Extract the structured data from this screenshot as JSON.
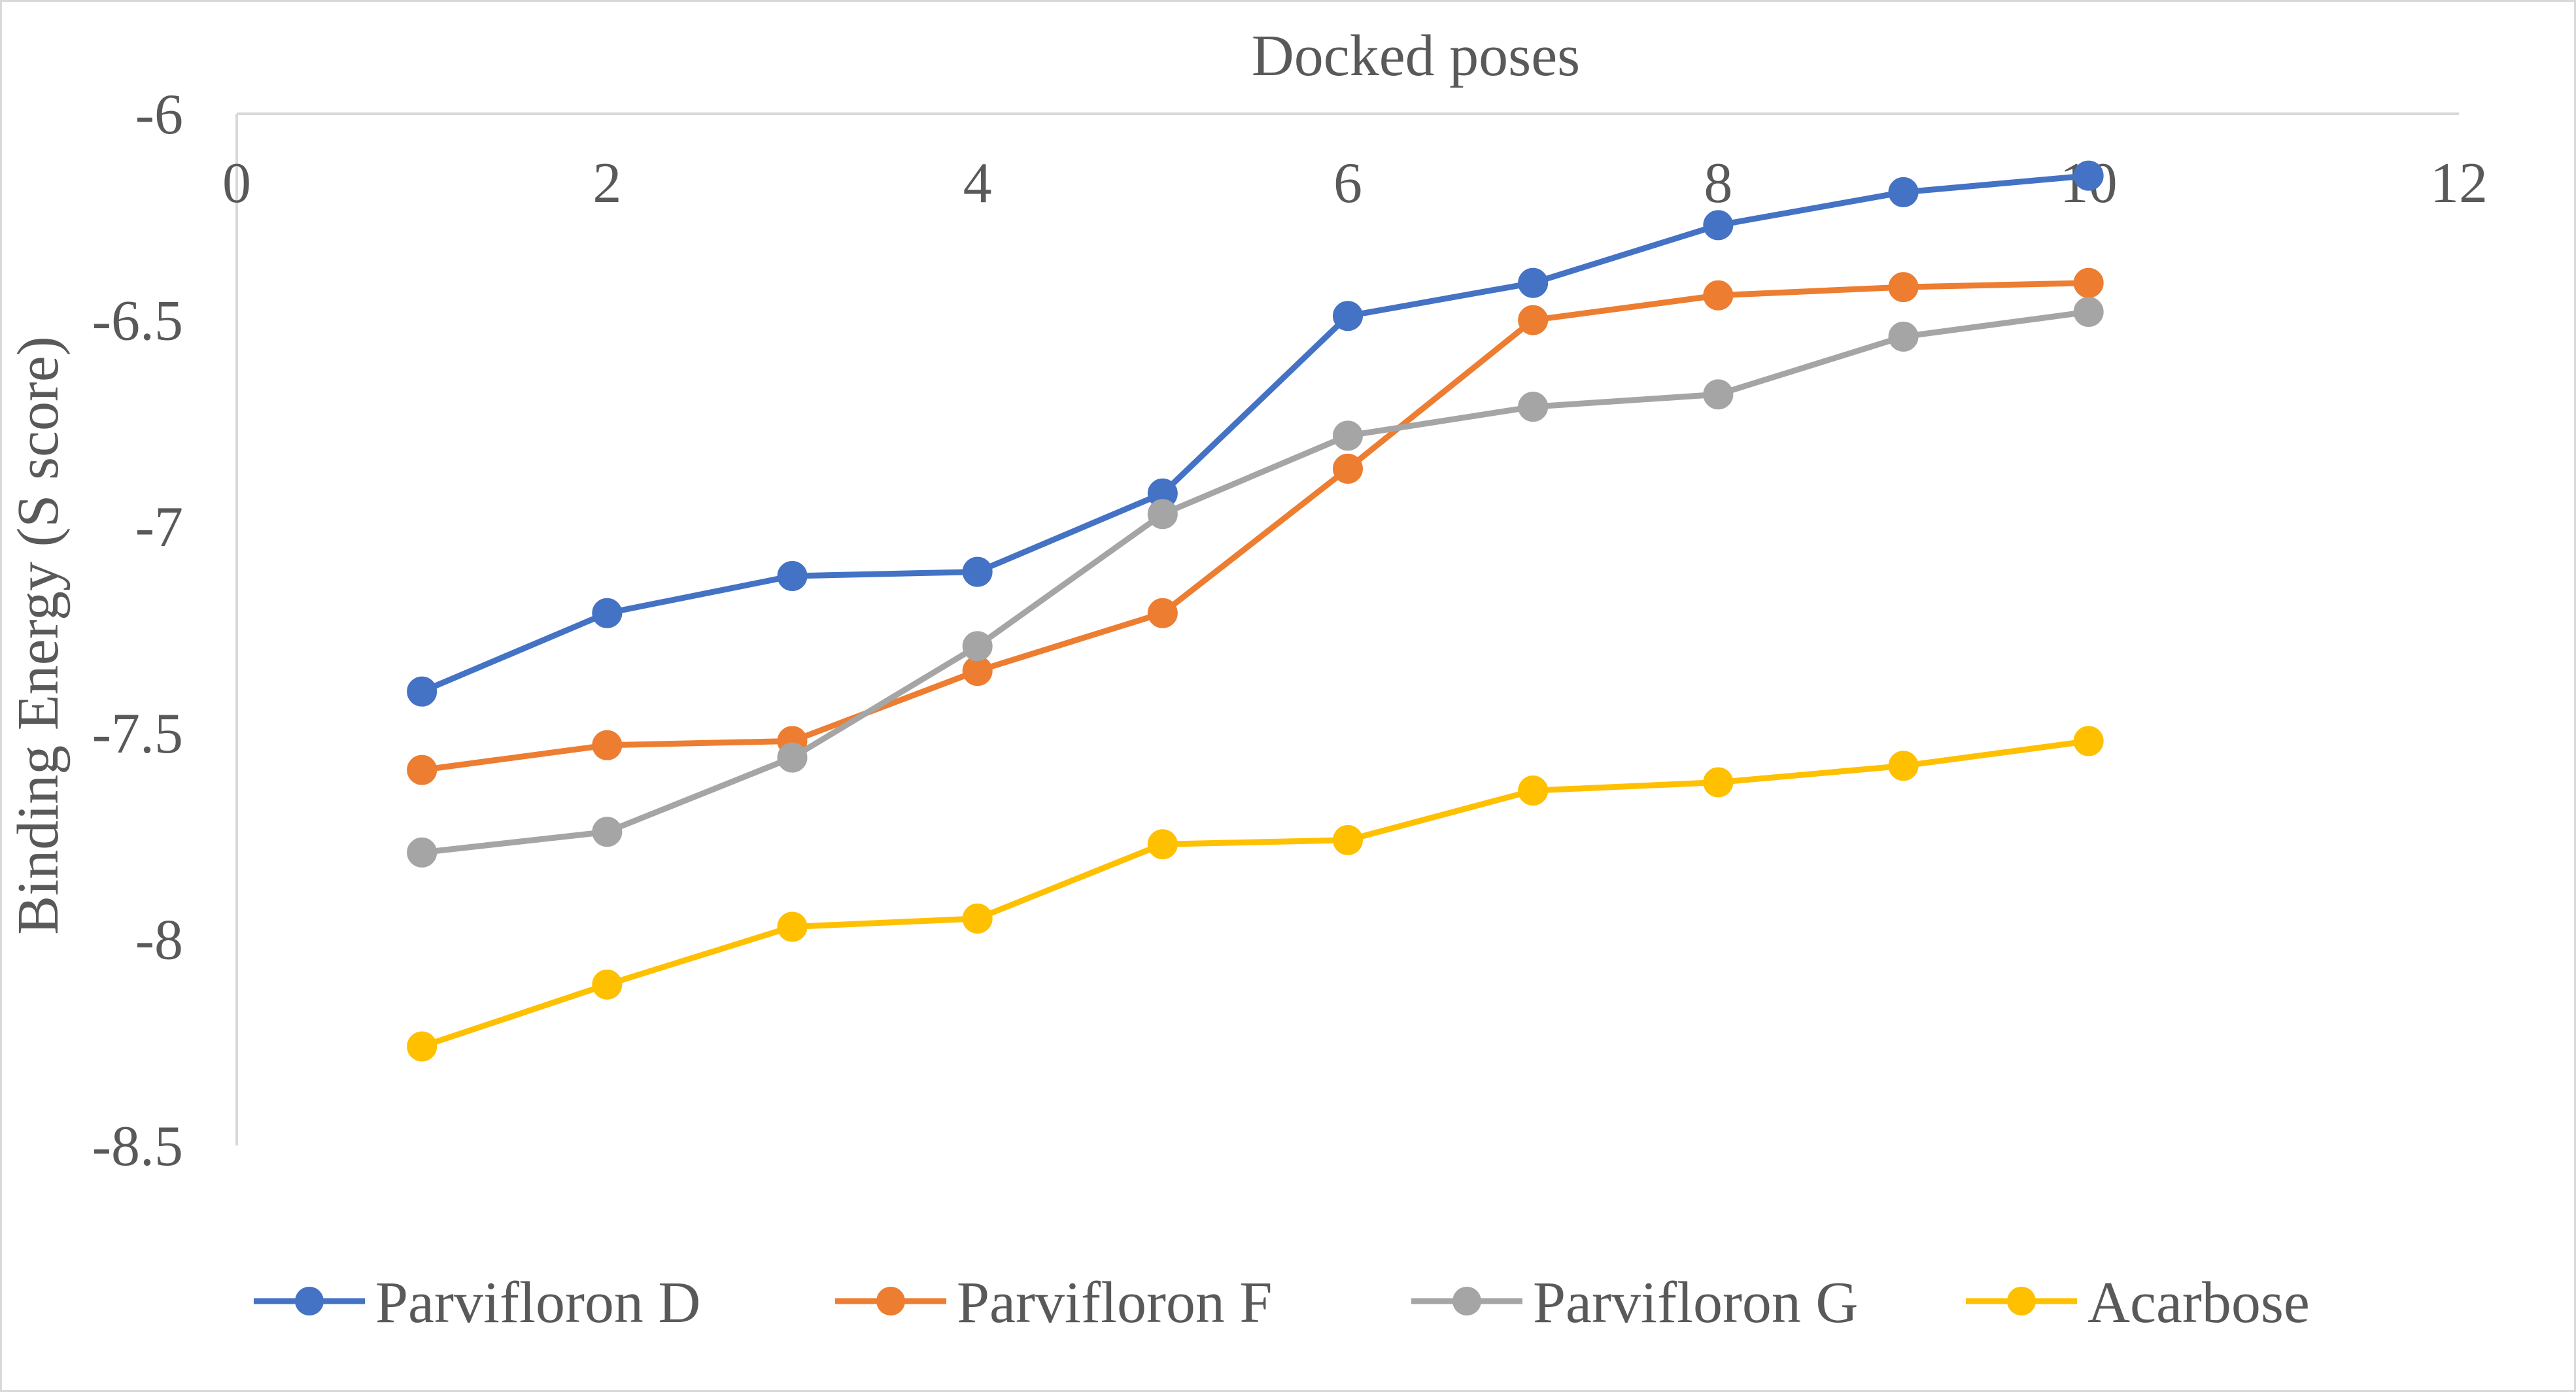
{
  "chart_data": {
    "type": "line",
    "title": "",
    "xlabel": "Docked poses",
    "ylabel": "Binding Energy (S score)",
    "xlim": [
      0,
      12
    ],
    "ylim": [
      -8.5,
      -6
    ],
    "xticks": [
      0,
      2,
      4,
      6,
      8,
      10,
      12
    ],
    "yticks": [
      -6,
      -6.5,
      -7,
      -7.5,
      -8,
      -8.5
    ],
    "xtick_labels": [
      "0",
      "2",
      "4",
      "6",
      "8",
      "10",
      "12"
    ],
    "ytick_labels": [
      "-6",
      "-6.5",
      "-7",
      "-7.5",
      "-8",
      "-8.5"
    ],
    "x_axis_position": "top",
    "grid": false,
    "legend_position": "bottom",
    "x": [
      1,
      2,
      3,
      4,
      5,
      6,
      7,
      8,
      9,
      10
    ],
    "series": [
      {
        "name": "Parvifloron D",
        "color": "#4472C4",
        "values": [
          -7.4,
          -7.21,
          -7.12,
          -7.11,
          -6.92,
          -6.49,
          -6.41,
          -6.27,
          -6.19,
          -6.15
        ]
      },
      {
        "name": "Parvifloron F",
        "color": "#ED7D31",
        "values": [
          -7.59,
          -7.53,
          -7.52,
          -7.35,
          -7.21,
          -6.86,
          -6.5,
          -6.44,
          -6.42,
          -6.41
        ]
      },
      {
        "name": "Parvifloron G",
        "color": "#A5A5A5",
        "values": [
          -7.79,
          -7.74,
          -7.56,
          -7.29,
          -6.97,
          -6.78,
          -6.71,
          -6.68,
          -6.54,
          -6.48
        ]
      },
      {
        "name": "Acarbose",
        "color": "#FFC000",
        "values": [
          -8.26,
          -8.11,
          -7.97,
          -7.95,
          -7.77,
          -7.76,
          -7.64,
          -7.62,
          -7.58,
          -7.52
        ]
      }
    ]
  }
}
